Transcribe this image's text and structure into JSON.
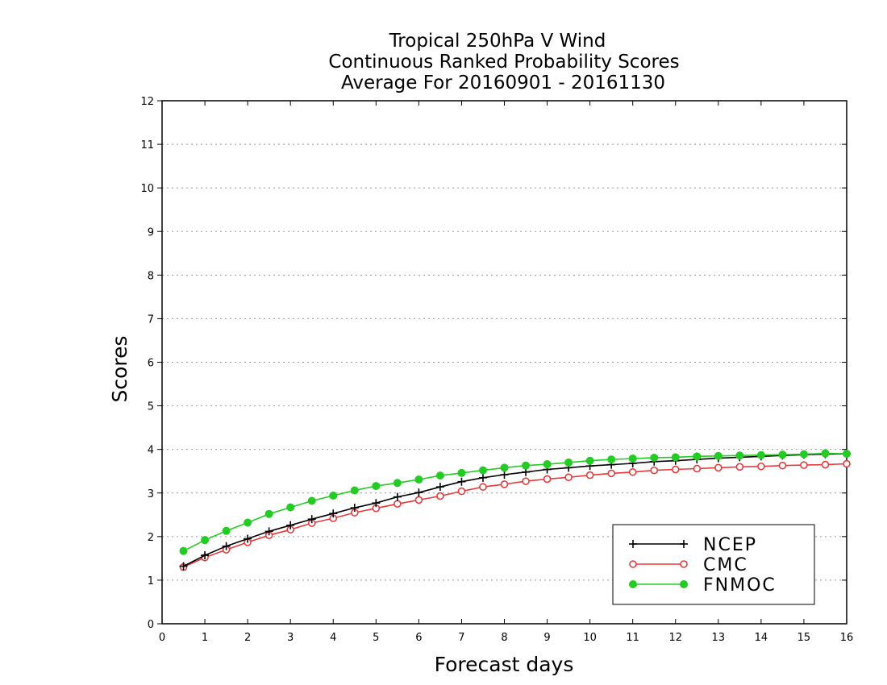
{
  "chart_data": {
    "type": "line",
    "title_lines": [
      "Tropical 250hPa V Wind",
      "Continuous Ranked Probability Scores",
      "Average For 20160901 - 20161130"
    ],
    "xlabel": "Forecast days",
    "ylabel": "Scores",
    "xlim": [
      0,
      16
    ],
    "ylim": [
      0,
      12
    ],
    "xticks": [
      "0",
      "1",
      "2",
      "3",
      "4",
      "5",
      "6",
      "7",
      "8",
      "9",
      "10",
      "11",
      "12",
      "13",
      "14",
      "15",
      "16"
    ],
    "yticks": [
      "0",
      "1",
      "2",
      "3",
      "4",
      "5",
      "6",
      "7",
      "8",
      "9",
      "10",
      "11",
      "12"
    ],
    "grid": "horizontal dotted",
    "legend_position": "lower-right",
    "x": [
      0.5,
      1,
      1.5,
      2,
      2.5,
      3,
      3.5,
      4,
      4.5,
      5,
      5.5,
      6,
      6.5,
      7,
      7.5,
      8,
      8.5,
      9,
      9.5,
      10,
      10.5,
      11,
      11.5,
      12,
      12.5,
      13,
      13.5,
      14,
      14.5,
      15,
      15.5,
      16
    ],
    "series": [
      {
        "name": "NCEP",
        "color": "#000000",
        "marker": "plus",
        "values": [
          1.32,
          1.57,
          1.78,
          1.95,
          2.12,
          2.26,
          2.4,
          2.53,
          2.66,
          2.77,
          2.91,
          3.01,
          3.14,
          3.26,
          3.35,
          3.42,
          3.48,
          3.54,
          3.58,
          3.62,
          3.65,
          3.68,
          3.72,
          3.74,
          3.77,
          3.8,
          3.82,
          3.84,
          3.86,
          3.88,
          3.89,
          3.9
        ]
      },
      {
        "name": "CMC",
        "color": "#e8393c",
        "marker": "open-circle",
        "values": [
          1.3,
          1.52,
          1.7,
          1.87,
          2.03,
          2.16,
          2.31,
          2.42,
          2.55,
          2.65,
          2.75,
          2.84,
          2.93,
          3.04,
          3.14,
          3.2,
          3.27,
          3.32,
          3.36,
          3.41,
          3.45,
          3.48,
          3.52,
          3.54,
          3.56,
          3.58,
          3.6,
          3.61,
          3.63,
          3.64,
          3.65,
          3.67
        ]
      },
      {
        "name": "FNMOC",
        "color": "#22cc22",
        "marker": "filled-circle",
        "values": [
          1.67,
          1.92,
          2.13,
          2.32,
          2.52,
          2.67,
          2.82,
          2.94,
          3.06,
          3.16,
          3.23,
          3.31,
          3.4,
          3.46,
          3.52,
          3.58,
          3.63,
          3.66,
          3.7,
          3.74,
          3.77,
          3.79,
          3.81,
          3.82,
          3.84,
          3.85,
          3.86,
          3.87,
          3.88,
          3.89,
          3.91,
          3.9
        ]
      }
    ]
  }
}
